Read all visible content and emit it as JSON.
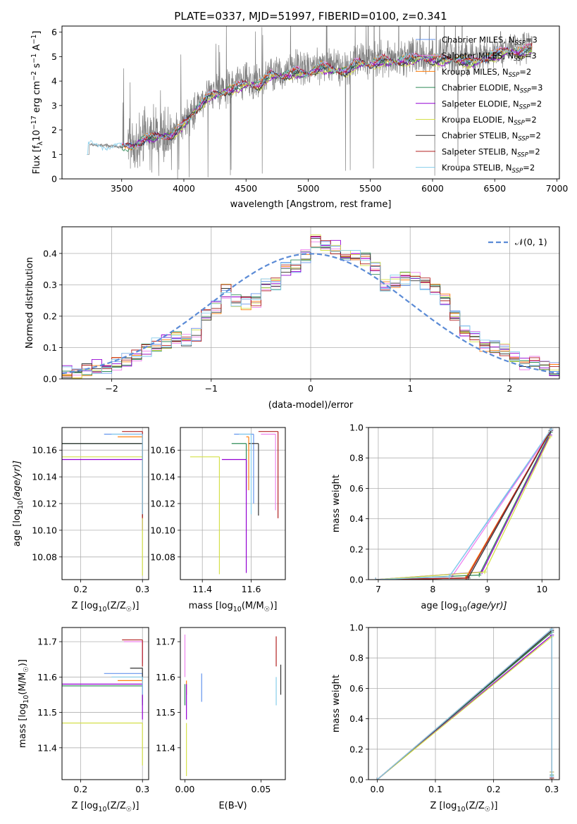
{
  "figure": {
    "title": "PLATE=0337, MJD=51997, FIBERID=0100, z=0.341"
  },
  "models": [
    {
      "name": "Chabrier MILES",
      "nssp": "3",
      "color": "#6495ed"
    },
    {
      "name": "Salpeter MILES",
      "nssp": "3",
      "color": "#ee82ee"
    },
    {
      "name": "Kroupa MILES",
      "nssp": "2",
      "color": "#ff7f0e"
    },
    {
      "name": "Chabrier ELODIE",
      "nssp": "3",
      "color": "#2e8b57"
    },
    {
      "name": "Salpeter ELODIE",
      "nssp": "2",
      "color": "#9400d3"
    },
    {
      "name": "Kroupa ELODIE",
      "nssp": "2",
      "color": "#d4e04a"
    },
    {
      "name": "Chabrier STELIB",
      "nssp": "2",
      "color": "#333333"
    },
    {
      "name": "Salpeter STELIB",
      "nssp": "2",
      "color": "#b22222"
    },
    {
      "name": "Kroupa STELIB",
      "nssp": "2",
      "color": "#87ceeb"
    }
  ],
  "chart_data": [
    {
      "id": "spectrum",
      "type": "line",
      "xlabel": "wavelength [Angstrom, rest frame]",
      "ylabel": "Flux [f_λ 10^-17 erg cm^-2 s^-1 A^-1]",
      "xlim": [
        3020,
        7020
      ],
      "ylim": [
        0,
        6.25
      ],
      "xticks": [
        3500,
        4000,
        4500,
        5000,
        5500,
        6000,
        6500,
        7000
      ],
      "yticks": [
        0,
        1,
        2,
        3,
        4,
        5,
        6
      ],
      "legend_position": "top-right",
      "data_color": "#808080",
      "continuum": {
        "x": [
          3220,
          3260,
          3400,
          3500,
          3600,
          3700,
          3800,
          3900,
          4000,
          4100,
          4200,
          4300,
          4400,
          4500,
          4600,
          4700,
          4800,
          4900,
          5000,
          5100,
          5200,
          5300,
          5400,
          5500,
          5600,
          5700,
          5800,
          5900,
          6000,
          6100,
          6200,
          6300,
          6400,
          6500,
          6600,
          6700,
          6800
        ],
        "y": [
          1.4,
          1.4,
          1.35,
          1.3,
          1.4,
          1.7,
          1.8,
          1.8,
          2.3,
          2.9,
          3.5,
          3.6,
          3.8,
          4.0,
          3.9,
          4.4,
          4.3,
          4.5,
          4.4,
          4.7,
          4.6,
          4.5,
          4.9,
          4.8,
          5.0,
          4.9,
          5.0,
          5.1,
          5.0,
          5.0,
          5.0,
          4.9,
          5.0,
          5.2,
          5.4,
          5.3,
          5.5
        ]
      }
    },
    {
      "id": "residuals",
      "type": "line",
      "xlabel": "(data-model)/error",
      "ylabel": "Normed distribution",
      "xlim": [
        -2.5,
        2.5
      ],
      "ylim": [
        0,
        0.485
      ],
      "xticks": [
        -2,
        -1,
        0,
        1,
        2
      ],
      "yticks": [
        0.0,
        0.1,
        0.2,
        0.3,
        0.4
      ],
      "grid": true,
      "legend_position": "top-right",
      "legend_label": "𝒩(0, 1)",
      "gaussian_color": "#5b8bd6",
      "hist_base": {
        "x": [
          -2.5,
          -2.4,
          -2.3,
          -2.2,
          -2.1,
          -2.0,
          -1.9,
          -1.8,
          -1.7,
          -1.6,
          -1.5,
          -1.4,
          -1.3,
          -1.2,
          -1.1,
          -1.0,
          -0.9,
          -0.8,
          -0.7,
          -0.6,
          -0.5,
          -0.4,
          -0.3,
          -0.2,
          -0.1,
          0.0,
          0.1,
          0.2,
          0.3,
          0.4,
          0.5,
          0.6,
          0.7,
          0.8,
          0.9,
          1.0,
          1.1,
          1.2,
          1.3,
          1.4,
          1.5,
          1.6,
          1.7,
          1.8,
          1.9,
          2.0,
          2.1,
          2.2,
          2.3,
          2.4
        ],
        "y": [
          0.02,
          0.02,
          0.03,
          0.04,
          0.04,
          0.05,
          0.06,
          0.07,
          0.09,
          0.11,
          0.12,
          0.13,
          0.12,
          0.14,
          0.2,
          0.23,
          0.28,
          0.25,
          0.24,
          0.25,
          0.3,
          0.3,
          0.35,
          0.36,
          0.39,
          0.44,
          0.43,
          0.42,
          0.4,
          0.4,
          0.38,
          0.35,
          0.3,
          0.31,
          0.32,
          0.32,
          0.3,
          0.28,
          0.25,
          0.2,
          0.15,
          0.13,
          0.11,
          0.1,
          0.09,
          0.07,
          0.05,
          0.05,
          0.04,
          0.03
        ]
      }
    },
    {
      "id": "age-vs-Z",
      "type": "scatter",
      "xlabel": "Z [log10(Z/Z☉)]",
      "ylabel": "age  [log10(age/yr)]",
      "xlim": [
        0.17,
        0.31
      ],
      "ylim": [
        10.063,
        10.177
      ],
      "xticks": [
        0.2,
        0.3
      ],
      "yticks": [
        10.08,
        10.1,
        10.12,
        10.14,
        10.16
      ],
      "grid": true,
      "points": [
        {
          "x": 0.3,
          "y": 10.172,
          "xmin": 0.238,
          "ymin": 10.11
        },
        {
          "x": 0.3,
          "y": 10.172,
          "xmin": 0.27,
          "ymin": 10.14
        },
        {
          "x": 0.3,
          "y": 10.17,
          "xmin": 0.26,
          "ymin": 10.12
        },
        {
          "x": 0.3,
          "y": 10.165,
          "xmin": 0.17,
          "ymin": 10.11
        },
        {
          "x": 0.3,
          "y": 10.153,
          "xmin": 0.17,
          "ymin": 10.1
        },
        {
          "x": 0.3,
          "y": 10.155,
          "xmin": 0.17,
          "ymin": 10.066
        },
        {
          "x": 0.3,
          "y": 10.165,
          "xmin": 0.17,
          "ymin": 10.11
        },
        {
          "x": 0.3,
          "y": 10.174,
          "xmin": 0.267,
          "ymin": 10.109
        },
        {
          "x": 0.3,
          "y": 10.172,
          "xmin": 0.25,
          "ymin": 10.112
        }
      ]
    },
    {
      "id": "age-vs-mass",
      "type": "scatter",
      "xlabel": "mass [log10(M/M☉)]",
      "ylabel": "",
      "xlim": [
        11.31,
        11.74
      ],
      "ylim": [
        10.063,
        10.177
      ],
      "xticks": [
        11.4,
        11.6
      ],
      "yticks": [
        10.08,
        10.1,
        10.12,
        10.14,
        10.16
      ],
      "grid": true,
      "points": [
        {
          "x": 11.61,
          "y": 10.172,
          "xmin": 11.53,
          "ymin": 10.12
        },
        {
          "x": 11.7,
          "y": 10.172,
          "xmin": 11.64,
          "ymin": 10.115
        },
        {
          "x": 11.59,
          "y": 10.17,
          "xmin": 11.58,
          "ymin": 10.13
        },
        {
          "x": 11.58,
          "y": 10.165,
          "xmin": 11.52,
          "ymin": 10.13
        },
        {
          "x": 11.58,
          "y": 10.153,
          "xmin": 11.48,
          "ymin": 10.068
        },
        {
          "x": 11.47,
          "y": 10.155,
          "xmin": 11.35,
          "ymin": 10.067
        },
        {
          "x": 11.63,
          "y": 10.165,
          "xmin": 11.59,
          "ymin": 10.111
        },
        {
          "x": 11.71,
          "y": 10.174,
          "xmin": 11.63,
          "ymin": 10.109
        },
        {
          "x": 11.6,
          "y": 10.172,
          "xmin": 11.55,
          "ymin": 10.112
        }
      ]
    },
    {
      "id": "weight-vs-age",
      "type": "line",
      "xlabel": "age  [log10(age/yr)]",
      "ylabel": "mass weight",
      "xlim": [
        6.82,
        10.32
      ],
      "ylim": [
        0.0,
        1.0
      ],
      "xticks": [
        7,
        8,
        9,
        10
      ],
      "yticks": [
        0.0,
        0.2,
        0.4,
        0.6,
        0.8,
        1.0
      ],
      "grid": true,
      "series": [
        {
          "x": [
            6.95,
            8.3,
            10.17
          ],
          "y": [
            0.0,
            0.02,
            0.98
          ]
        },
        {
          "x": [
            6.95,
            8.35,
            10.17
          ],
          "y": [
            0.0,
            0.02,
            0.98
          ]
        },
        {
          "x": [
            6.95,
            8.6,
            10.15
          ],
          "y": [
            0.0,
            0.01,
            0.97
          ]
        },
        {
          "x": [
            6.95,
            8.85,
            10.16
          ],
          "y": [
            0.0,
            0.03,
            0.97
          ]
        },
        {
          "x": [
            6.95,
            8.9,
            10.15
          ],
          "y": [
            0.0,
            0.05,
            0.95
          ]
        },
        {
          "x": [
            6.95,
            8.95,
            10.15
          ],
          "y": [
            0.0,
            0.05,
            0.94
          ]
        },
        {
          "x": [
            6.95,
            8.65,
            10.16
          ],
          "y": [
            0.0,
            0.01,
            0.98
          ]
        },
        {
          "x": [
            6.95,
            8.62,
            10.17
          ],
          "y": [
            0.0,
            0.01,
            0.99
          ]
        },
        {
          "x": [
            6.95,
            8.3,
            10.17
          ],
          "y": [
            0.0,
            0.02,
            0.99
          ]
        }
      ]
    },
    {
      "id": "mass-vs-Z",
      "type": "scatter",
      "xlabel": "Z [log10(Z/Z☉)]",
      "ylabel": "mass [log10(M/M☉)]",
      "xlim": [
        0.17,
        0.31
      ],
      "ylim": [
        11.31,
        11.74
      ],
      "xticks": [
        0.2,
        0.3
      ],
      "yticks": [
        11.4,
        11.5,
        11.6,
        11.7
      ],
      "grid": true,
      "points": [
        {
          "x": 0.3,
          "y": 11.61,
          "xmin": 0.238,
          "ymin": 11.53
        },
        {
          "x": 0.3,
          "y": 11.7,
          "xmin": 0.27,
          "ymin": 11.64
        },
        {
          "x": 0.3,
          "y": 11.59,
          "xmin": 0.26,
          "ymin": 11.58
        },
        {
          "x": 0.3,
          "y": 11.575,
          "xmin": 0.17,
          "ymin": 11.52
        },
        {
          "x": 0.3,
          "y": 11.58,
          "xmin": 0.17,
          "ymin": 11.48
        },
        {
          "x": 0.3,
          "y": 11.47,
          "xmin": 0.17,
          "ymin": 11.35
        },
        {
          "x": 0.3,
          "y": 11.625,
          "xmin": 0.28,
          "ymin": 11.59
        },
        {
          "x": 0.3,
          "y": 11.705,
          "xmin": 0.267,
          "ymin": 11.63
        },
        {
          "x": 0.3,
          "y": 11.6,
          "xmin": 0.25,
          "ymin": 11.55
        }
      ]
    },
    {
      "id": "mass-vs-EBV",
      "type": "scatter",
      "xlabel": "E(B-V)",
      "ylabel": "",
      "xlim": [
        -0.003,
        0.066
      ],
      "ylim": [
        11.31,
        11.74
      ],
      "xticks": [
        0.0,
        0.05
      ],
      "yticks": [
        11.4,
        11.5,
        11.6,
        11.7
      ],
      "grid": false,
      "points": [
        {
          "x": 0.011,
          "y": 11.61,
          "xmin": 0.011,
          "ymin": 11.53
        },
        {
          "x": 0.0,
          "y": 11.72,
          "xmin": 0.0,
          "ymin": 11.6
        },
        {
          "x": 0.001,
          "y": 11.59,
          "xmin": 0.001,
          "ymin": 11.55
        },
        {
          "x": 0.0,
          "y": 11.58,
          "xmin": 0.0,
          "ymin": 11.52
        },
        {
          "x": 0.001,
          "y": 11.58,
          "xmin": 0.001,
          "ymin": 11.48
        },
        {
          "x": 0.001,
          "y": 11.47,
          "xmin": 0.001,
          "ymin": 11.32
        },
        {
          "x": 0.063,
          "y": 11.635,
          "xmin": 0.063,
          "ymin": 11.55
        },
        {
          "x": 0.06,
          "y": 11.715,
          "xmin": 0.06,
          "ymin": 11.63
        },
        {
          "x": 0.06,
          "y": 11.6,
          "xmin": 0.06,
          "ymin": 11.52
        }
      ]
    },
    {
      "id": "weight-vs-Z",
      "type": "line",
      "xlabel": "Z [log10(Z/Z☉)]",
      "ylabel": "mass weight",
      "xlim": [
        -0.015,
        0.313
      ],
      "ylim": [
        0.0,
        1.0
      ],
      "xticks": [
        0.0,
        0.1,
        0.2,
        0.3
      ],
      "yticks": [
        0.0,
        0.2,
        0.4,
        0.6,
        0.8,
        1.0
      ],
      "grid": true,
      "series": [
        {
          "x": [
            0.0,
            0.3,
            0.3
          ],
          "y": [
            0.0,
            0.98,
            0.02
          ]
        },
        {
          "x": [
            0.0,
            0.3,
            0.3
          ],
          "y": [
            0.0,
            0.98,
            0.02
          ]
        },
        {
          "x": [
            0.0,
            0.3,
            0.3
          ],
          "y": [
            0.0,
            0.97,
            0.01
          ]
        },
        {
          "x": [
            0.0,
            0.3,
            0.3
          ],
          "y": [
            0.0,
            0.97,
            0.03
          ]
        },
        {
          "x": [
            0.0,
            0.3,
            0.3
          ],
          "y": [
            0.0,
            0.95,
            0.05
          ]
        },
        {
          "x": [
            0.0,
            0.3,
            0.3
          ],
          "y": [
            0.0,
            0.94,
            0.05
          ]
        },
        {
          "x": [
            0.0,
            0.3,
            0.3
          ],
          "y": [
            0.0,
            0.98,
            0.01
          ]
        },
        {
          "x": [
            0.0,
            0.3,
            0.3
          ],
          "y": [
            0.0,
            0.99,
            0.01
          ]
        },
        {
          "x": [
            0.0,
            0.3,
            0.3
          ],
          "y": [
            0.0,
            0.99,
            0.02
          ]
        }
      ]
    }
  ]
}
